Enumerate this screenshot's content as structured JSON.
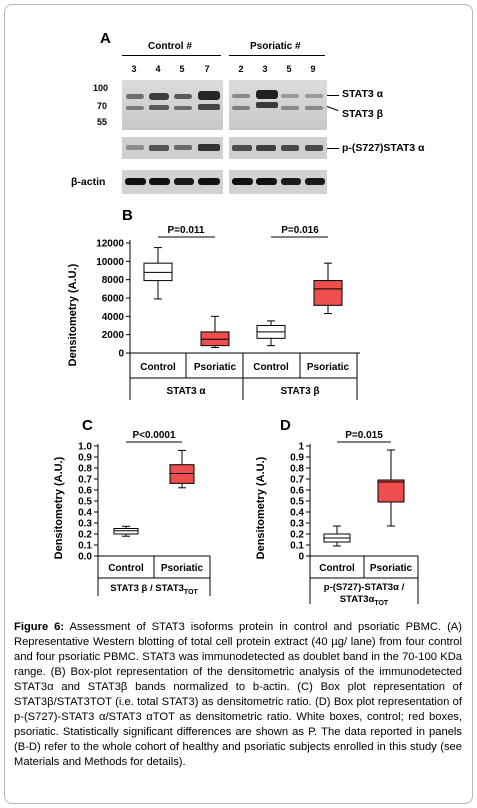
{
  "panel_a": {
    "letter": "A",
    "group_control": "Control #",
    "group_psoriatic": "Psoriatic #",
    "lanes_control": [
      "3",
      "4",
      "5",
      "7"
    ],
    "lanes_psoriatic": [
      "2",
      "3",
      "5",
      "9"
    ],
    "mw_markers": [
      "100",
      "70",
      "55"
    ],
    "band_stat3_alpha": "STAT3 α",
    "band_stat3_beta": "STAT3 β",
    "band_pstat3": "p-(S727)STAT3 α",
    "band_actin": "β-actin"
  },
  "chart_data": [
    {
      "panel": "B",
      "type": "box",
      "ylabel": "Densitometry (A.U.)",
      "ylim": [
        0,
        12000
      ],
      "yticks": [
        "0",
        "2000",
        "4000",
        "6000",
        "8000",
        "10000",
        "12000"
      ],
      "categories": [
        "Control",
        "Psoriatic",
        "Control",
        "Psoriatic"
      ],
      "groups": [
        "STAT3 α",
        "STAT3 β"
      ],
      "annotations": [
        "P=0.011",
        "P=0.016"
      ],
      "boxes": [
        {
          "category": "Control",
          "group": "STAT3 α",
          "min": 5900,
          "q1": 7900,
          "median": 8800,
          "q3": 9800,
          "max": 11500,
          "fill": "#ffffff"
        },
        {
          "category": "Psoriatic",
          "group": "STAT3 α",
          "min": 600,
          "q1": 800,
          "median": 1500,
          "q3": 2300,
          "max": 4000,
          "fill": "#ef4e4e"
        },
        {
          "category": "Control",
          "group": "STAT3 β",
          "min": 800,
          "q1": 1600,
          "median": 2300,
          "q3": 3000,
          "max": 3500,
          "fill": "#ffffff"
        },
        {
          "category": "Psoriatic",
          "group": "STAT3 β",
          "min": 4300,
          "q1": 5200,
          "median": 7000,
          "q3": 7900,
          "max": 9800,
          "fill": "#ef4e4e"
        }
      ]
    },
    {
      "panel": "C",
      "type": "box",
      "ylabel": "Densitometry (A.U.)",
      "ylim": [
        0,
        1
      ],
      "yticks": [
        "0.0",
        "0.1",
        "0.2",
        "0.3",
        "0.4",
        "0.5",
        "0.6",
        "0.7",
        "0.8",
        "0.9",
        "1.0"
      ],
      "categories": [
        "Control",
        "Psoriatic"
      ],
      "group_label": "STAT3 β / STAT3",
      "group_sub": "TOT",
      "annotation": "P<0.0001",
      "boxes": [
        {
          "category": "Control",
          "min": 0.18,
          "q1": 0.2,
          "median": 0.23,
          "q3": 0.25,
          "max": 0.27,
          "fill": "#ffffff"
        },
        {
          "category": "Psoriatic",
          "min": 0.62,
          "q1": 0.66,
          "median": 0.75,
          "q3": 0.83,
          "max": 0.96,
          "fill": "#ef4e4e"
        }
      ]
    },
    {
      "panel": "D",
      "type": "box",
      "ylabel": "Densitometry (A.U.)",
      "ylim": [
        0,
        1.1
      ],
      "yticks": [
        "0",
        "0.1",
        "0.2",
        "0.3",
        "0.4",
        "0.5",
        "0.6",
        "0.7",
        "0.8",
        "0.9",
        "1"
      ],
      "categories": [
        "Control",
        "Psoriatic"
      ],
      "group_label_line1": "p-(S727)-STAT3α /",
      "group_label_line2": "STAT3α",
      "group_sub": "TOT",
      "annotation": "P=0.015",
      "boxes": [
        {
          "category": "Control",
          "min": 0.1,
          "q1": 0.14,
          "median": 0.18,
          "q3": 0.22,
          "max": 0.3,
          "fill": "#ffffff"
        },
        {
          "category": "Psoriatic",
          "min": 0.3,
          "q1": 0.54,
          "median": 0.74,
          "q3": 0.76,
          "max": 1.06,
          "fill": "#ef4e4e"
        }
      ]
    }
  ],
  "panel_letters": {
    "b": "B",
    "c": "C",
    "d": "D"
  },
  "caption": {
    "label": "Figure 6:",
    "text": " Assessment of STAT3 isoforms protein in control and psoriatic PBMC. (A) Representative Western blotting of total cell protein extract (40 µg/ lane) from four control and four psoriatic PBMC. STAT3 was immunodetected as doublet band in the 70-100 KDa range. (B) Box-plot representation of the densitometric analysis of the immunodetected STAT3α and STAT3β bands normalized to b-actin. (C) Box plot representation of STAT3β/STAT3TOT (i.e. total STAT3) as densitometric ratio. (D) Box plot representation of p-(S727)-STAT3 α/STAT3 αTOT as densitometric ratio. White boxes, control; red boxes, psoriatic. Statistically significant differences are shown as P. The data reported in panels (B-D) refer to the whole cohort of healthy and psoriatic subjects enrolled in this study (see Materials and Methods for details)."
  },
  "colors": {
    "psoriatic_box": "#ef4e4e",
    "control_box": "#ffffff"
  }
}
